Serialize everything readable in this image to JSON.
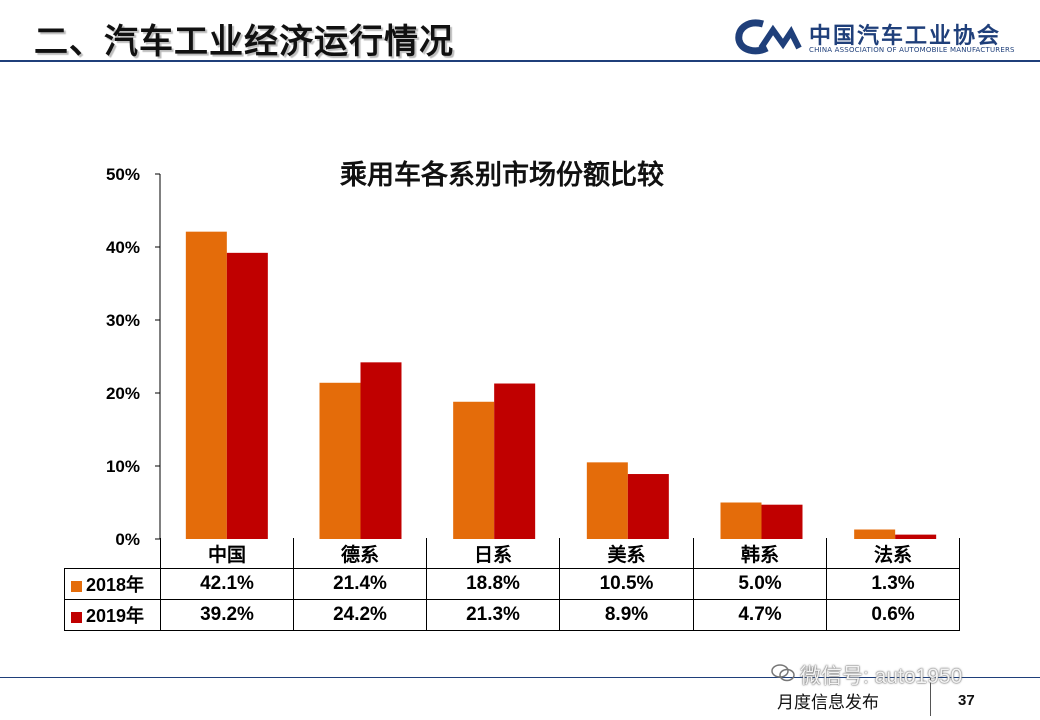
{
  "header": {
    "title": "二、汽车工业经济运行情况",
    "logo_cn": "中国汽车工业协会",
    "logo_en": "CHINA ASSOCIATION OF AUTOMOBILE MANUFACTURERS"
  },
  "footer": {
    "label": "月度信息发布",
    "page_number": "37",
    "watermark": "微信号: auto1950"
  },
  "colors": {
    "series_2018": "#e46c0a",
    "series_2019": "#c00000",
    "brand_blue": "#1f3f7a"
  },
  "chart_data": {
    "type": "bar",
    "title": "乘用车各系别市场份额比较",
    "categories": [
      "中国",
      "德系",
      "日系",
      "美系",
      "韩系",
      "法系"
    ],
    "series": [
      {
        "name": "2018年",
        "values": [
          42.1,
          21.4,
          18.8,
          10.5,
          5.0,
          1.3
        ],
        "labels": [
          "42.1%",
          "21.4%",
          "18.8%",
          "10.5%",
          "5.0%",
          "1.3%"
        ]
      },
      {
        "name": "2019年",
        "values": [
          39.2,
          24.2,
          21.3,
          8.9,
          4.7,
          0.6
        ],
        "labels": [
          "39.2%",
          "24.2%",
          "21.3%",
          "8.9%",
          "4.7%",
          "0.6%"
        ]
      }
    ],
    "y_ticks": [
      "0%",
      "10%",
      "20%",
      "30%",
      "40%",
      "50%"
    ],
    "ylim": [
      0,
      50
    ],
    "legend": "data-table",
    "grid": false
  }
}
